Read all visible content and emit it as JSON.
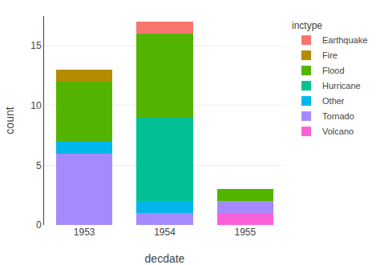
{
  "chart_data": {
    "type": "bar",
    "stacked": true,
    "xlabel": "decdate",
    "ylabel": "count",
    "legend_title": "inctype",
    "categories": [
      "1953",
      "1954",
      "1955"
    ],
    "series": [
      {
        "name": "Volcano",
        "color": "#FB61D7",
        "values": [
          0,
          0,
          1
        ]
      },
      {
        "name": "Tornado",
        "color": "#A58AFF",
        "values": [
          6,
          1,
          1
        ]
      },
      {
        "name": "Other",
        "color": "#00B6EB",
        "values": [
          1,
          1,
          0
        ]
      },
      {
        "name": "Hurricane",
        "color": "#00C094",
        "values": [
          0,
          7,
          0
        ]
      },
      {
        "name": "Flood",
        "color": "#53B400",
        "values": [
          5,
          7,
          1
        ]
      },
      {
        "name": "Fire",
        "color": "#B58B00",
        "values": [
          1,
          0,
          0
        ]
      },
      {
        "name": "Earthquake",
        "color": "#F8766D",
        "values": [
          0,
          1,
          0
        ]
      }
    ],
    "ylim": [
      0,
      17.5
    ],
    "yticks": [
      0,
      5,
      10,
      15
    ],
    "grid": true,
    "legend": "right"
  }
}
